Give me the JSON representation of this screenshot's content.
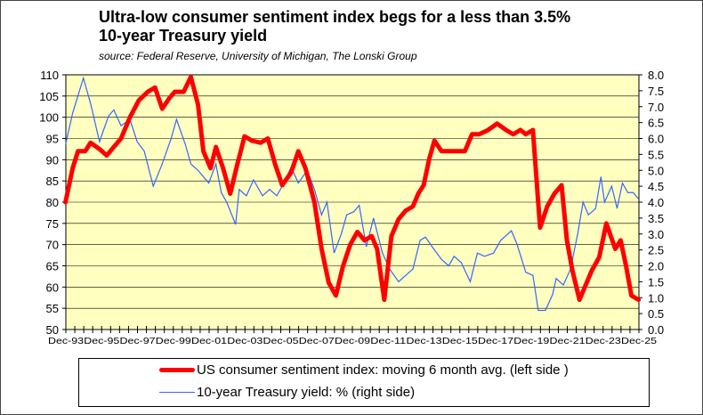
{
  "chart_data": {
    "type": "line",
    "title": "Ultra-low consumer sentiment index begs for a less than 3.5% 10-year Treasury yield",
    "title_lines": [
      "Ultra-low consumer sentiment index begs for a less than 3.5%",
      "10-year Treasury yield"
    ],
    "subtitle": "source: Federal Reserve, University of Michigan, The Lonski Group",
    "x_range": [
      1993.92,
      2025.92
    ],
    "x_ticks": [
      "Dec-93",
      "Dec-95",
      "Dec-97",
      "Dec-99",
      "Dec-01",
      "Dec-03",
      "Dec-05",
      "Dec-07",
      "Dec-09",
      "Dec-11",
      "Dec-13",
      "Dec-15",
      "Dec-17",
      "Dec-19",
      "Dec-21",
      "Dec-23",
      "Dec-25"
    ],
    "y_left": {
      "range": [
        50,
        110
      ],
      "ticks": [
        "50",
        "55",
        "60",
        "65",
        "70",
        "75",
        "80",
        "85",
        "90",
        "95",
        "100",
        "105",
        "110"
      ]
    },
    "y_right": {
      "range": [
        0,
        8
      ],
      "ticks": [
        "0.0",
        "0.5",
        "1.0",
        "1.5",
        "2.0",
        "2.5",
        "3.0",
        "3.5",
        "4.0",
        "4.5",
        "5.0",
        "5.5",
        "6.0",
        "6.5",
        "7.0",
        "7.5",
        "8.0"
      ]
    },
    "grid": true,
    "legend_position": "bottom",
    "series": [
      {
        "name": "US consumer sentiment index: moving 6 month avg. (left side )",
        "axis": "left",
        "color": "#ff0000",
        "x": [
          1993.9,
          1994.3,
          1994.6,
          1995.0,
          1995.3,
          1995.8,
          1996.2,
          1996.6,
          1997.0,
          1997.5,
          1998.0,
          1998.5,
          1998.9,
          1999.3,
          1999.7,
          2000.0,
          2000.5,
          2000.9,
          2001.3,
          2001.6,
          2002.0,
          2002.3,
          2002.7,
          2003.1,
          2003.5,
          2003.9,
          2004.3,
          2004.8,
          2005.2,
          2005.6,
          2006.0,
          2006.5,
          2006.9,
          2007.3,
          2007.8,
          2008.2,
          2008.6,
          2009.0,
          2009.4,
          2009.8,
          2010.2,
          2010.6,
          2011.0,
          2011.3,
          2011.7,
          2012.1,
          2012.5,
          2012.9,
          2013.3,
          2013.6,
          2013.9,
          2014.2,
          2014.5,
          2014.9,
          2015.3,
          2015.8,
          2016.2,
          2016.6,
          2017.0,
          2017.5,
          2018.0,
          2018.5,
          2018.9,
          2019.3,
          2019.6,
          2020.0,
          2020.4,
          2020.8,
          2021.2,
          2021.6,
          2021.9,
          2022.2,
          2022.6,
          2022.9,
          2023.3,
          2023.7,
          2024.1,
          2024.6,
          2024.9,
          2025.2,
          2025.5,
          2025.9
        ],
        "values": [
          80,
          88,
          92,
          92,
          94,
          92.5,
          91,
          93,
          95,
          100,
          104,
          106,
          107,
          102,
          104.5,
          106,
          106,
          109.5,
          103,
          92,
          88,
          93,
          88,
          82,
          89,
          95.5,
          94.5,
          94,
          95,
          89,
          84,
          87,
          92,
          88,
          80,
          69,
          61,
          58,
          65,
          70,
          73,
          71,
          72,
          69,
          57,
          72,
          76,
          78,
          79,
          82,
          84,
          90,
          94.5,
          92,
          92,
          92,
          92,
          96,
          96,
          97,
          98.5,
          97,
          96,
          97,
          96,
          97,
          74,
          79,
          82,
          84,
          71,
          64,
          57,
          60,
          64,
          67,
          75,
          69,
          71,
          65,
          58,
          57
        ]
      },
      {
        "name": "10-year Treasury yield: % (right side)",
        "axis": "right",
        "color": "#3366ff",
        "x": [
          1993.9,
          1994.3,
          1994.9,
          1995.3,
          1995.8,
          1996.3,
          1996.6,
          1997.0,
          1997.5,
          1997.9,
          1998.3,
          1998.8,
          1999.3,
          1999.8,
          2000.1,
          2000.6,
          2000.9,
          2001.3,
          2001.9,
          2002.3,
          2002.6,
          2002.9,
          2003.4,
          2003.6,
          2004.0,
          2004.4,
          2004.9,
          2005.3,
          2005.7,
          2006.0,
          2006.5,
          2006.9,
          2007.4,
          2007.8,
          2008.2,
          2008.5,
          2008.9,
          2009.3,
          2009.6,
          2010.0,
          2010.3,
          2010.7,
          2011.1,
          2011.6,
          2012.0,
          2012.5,
          2012.9,
          2013.3,
          2013.7,
          2014.0,
          2014.5,
          2014.9,
          2015.3,
          2015.6,
          2016.0,
          2016.5,
          2016.9,
          2017.3,
          2017.8,
          2018.2,
          2018.8,
          2019.1,
          2019.6,
          2020.0,
          2020.3,
          2020.7,
          2021.1,
          2021.3,
          2021.7,
          2022.1,
          2022.5,
          2022.8,
          2023.1,
          2023.5,
          2023.8,
          2024.0,
          2024.4,
          2024.7,
          2025.0,
          2025.3,
          2025.6,
          2025.9
        ],
        "values": [
          5.8,
          6.8,
          7.9,
          7.1,
          5.9,
          6.7,
          6.9,
          6.4,
          6.6,
          5.9,
          5.6,
          4.5,
          5.2,
          6.0,
          6.6,
          5.8,
          5.2,
          5.0,
          4.6,
          5.2,
          4.3,
          4.0,
          3.3,
          4.4,
          4.2,
          4.7,
          4.2,
          4.4,
          4.2,
          4.5,
          5.1,
          4.6,
          5.0,
          4.4,
          3.6,
          4.0,
          2.4,
          3.0,
          3.6,
          3.7,
          3.9,
          2.6,
          3.5,
          2.4,
          1.9,
          1.5,
          1.7,
          1.9,
          2.8,
          2.9,
          2.5,
          2.2,
          2.0,
          2.3,
          2.1,
          1.5,
          2.4,
          2.3,
          2.4,
          2.8,
          3.1,
          2.7,
          1.8,
          1.7,
          0.6,
          0.6,
          1.1,
          1.6,
          1.4,
          1.9,
          3.0,
          4.0,
          3.6,
          3.8,
          4.8,
          4.0,
          4.5,
          3.8,
          4.6,
          4.3,
          4.3,
          4.1
        ]
      }
    ]
  }
}
